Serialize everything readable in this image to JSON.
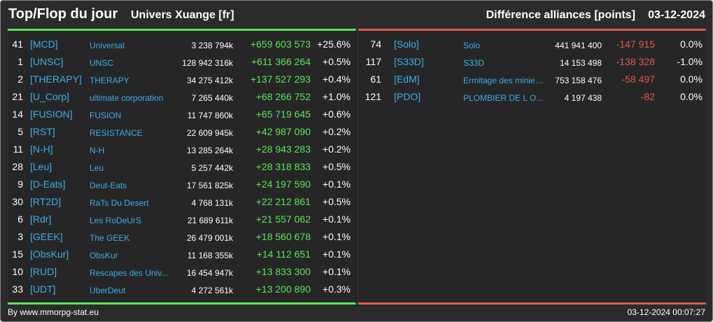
{
  "header": {
    "title": "Top/Flop du jour",
    "universe": "Univers Xuange [fr]",
    "diff_label": "Différence alliances [points]",
    "date": "03-12-2024"
  },
  "colors": {
    "background": "#2b2b2b",
    "top_accent": "#5ce65c",
    "flop_accent": "#e0584f",
    "link": "#3daee9"
  },
  "top": [
    {
      "rank": "41",
      "tag": "[MCD]",
      "name": "Universal",
      "points": "3 238 794k",
      "delta": "+659 603 573",
      "pct": "+25.6%"
    },
    {
      "rank": "1",
      "tag": "[UNSC]",
      "name": "UNSC",
      "points": "128 942 316k",
      "delta": "+611 366 264",
      "pct": "+0.5%"
    },
    {
      "rank": "2",
      "tag": "[THERAPY]",
      "name": "THERAPY",
      "points": "34 275 412k",
      "delta": "+137 527 293",
      "pct": "+0.4%"
    },
    {
      "rank": "21",
      "tag": "[U_Corp]",
      "name": "ultimate corporation",
      "points": "7 265 440k",
      "delta": "+68 266 752",
      "pct": "+1.0%"
    },
    {
      "rank": "14",
      "tag": "[FUSION]",
      "name": "FUSION",
      "points": "11 747 860k",
      "delta": "+65 719 645",
      "pct": "+0.6%"
    },
    {
      "rank": "5",
      "tag": "[RST]",
      "name": "RESISTANCE",
      "points": "22 609 945k",
      "delta": "+42 987 090",
      "pct": "+0.2%"
    },
    {
      "rank": "11",
      "tag": "[N-H]",
      "name": "N-H",
      "points": "13 285 264k",
      "delta": "+28 943 283",
      "pct": "+0.2%"
    },
    {
      "rank": "28",
      "tag": "[Leu]",
      "name": "Leu",
      "points": "5 257 442k",
      "delta": "+28 318 833",
      "pct": "+0.5%"
    },
    {
      "rank": "9",
      "tag": "[D-Eats]",
      "name": "Deut-Eats",
      "points": "17 561 825k",
      "delta": "+24 197 590",
      "pct": "+0.1%"
    },
    {
      "rank": "30",
      "tag": "[RT2D]",
      "name": "RaTs Du Desert",
      "points": "4 768 131k",
      "delta": "+22 212 861",
      "pct": "+0.5%"
    },
    {
      "rank": "6",
      "tag": "[Rdr]",
      "name": "Les RoDeUrS",
      "points": "21 689 611k",
      "delta": "+21 557 062",
      "pct": "+0.1%"
    },
    {
      "rank": "3",
      "tag": "[GEEK]",
      "name": "The GEEK",
      "points": "26 479 001k",
      "delta": "+18 560 678",
      "pct": "+0.1%"
    },
    {
      "rank": "15",
      "tag": "[ObsKur]",
      "name": "ObsKur",
      "points": "11 168 355k",
      "delta": "+14 112 651",
      "pct": "+0.1%"
    },
    {
      "rank": "10",
      "tag": "[RUD]",
      "name": "Rescapes des Univ...",
      "points": "16 454 947k",
      "delta": "+13 833 300",
      "pct": "+0.1%"
    },
    {
      "rank": "33",
      "tag": "[UDT]",
      "name": "UberDeut",
      "points": "4 272 561k",
      "delta": "+13 200 890",
      "pct": "+0.3%"
    }
  ],
  "flop": [
    {
      "rank": "74",
      "tag": "[Solo]",
      "name": "Solo",
      "points": "441 941 400",
      "delta": "-147 915",
      "pct": "0.0%"
    },
    {
      "rank": "117",
      "tag": "[S33D]",
      "name": "S33D",
      "points": "14 153 498",
      "delta": "-138 328",
      "pct": "-1.0%"
    },
    {
      "rank": "61",
      "tag": "[EdM]",
      "name": "Ermitage des minier...",
      "points": "753 158 476",
      "delta": "-58 497",
      "pct": "0.0%"
    },
    {
      "rank": "121",
      "tag": "[PDO]",
      "name": "PLOMBIER DE L O...",
      "points": "4 197 438",
      "delta": "-82",
      "pct": "0.0%"
    }
  ],
  "footer": {
    "credit": "By www.mmorpg-stat.eu",
    "timestamp": "03-12-2024 00:07:27"
  }
}
